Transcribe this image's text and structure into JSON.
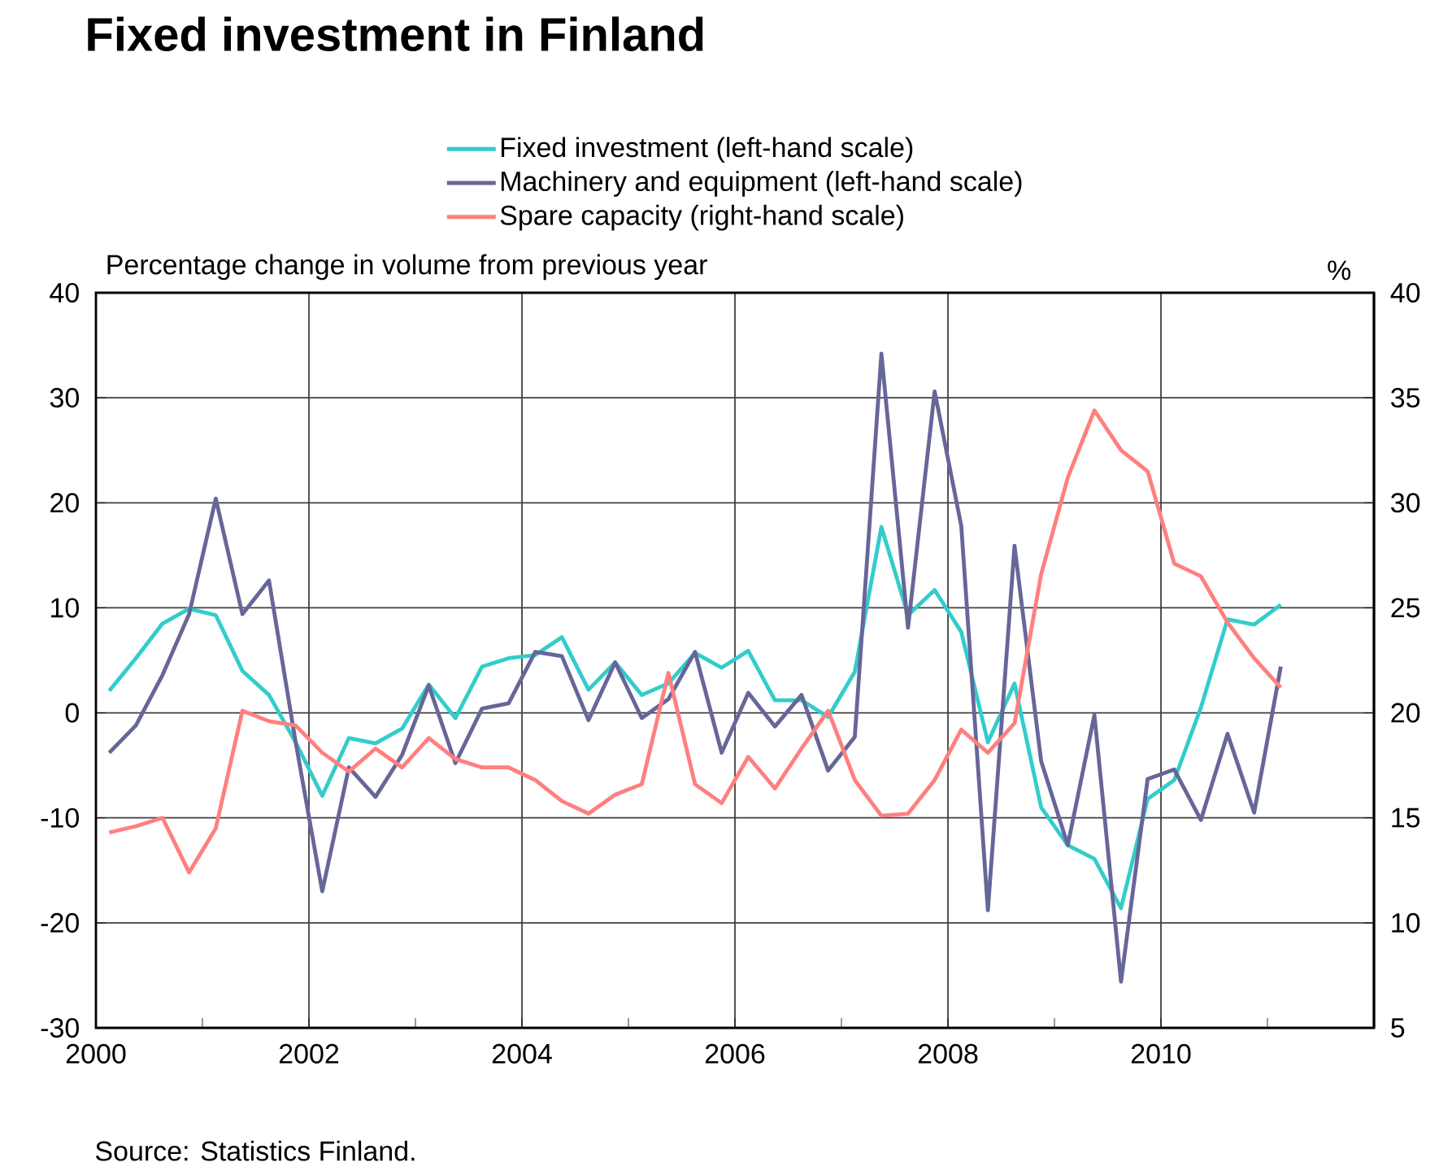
{
  "chart_data": {
    "type": "line",
    "title": "Fixed investment in Finland",
    "ylabel": "Percentage change in volume from previous year",
    "y2label": "%",
    "annotations": [
      "Source: Statistics Finland."
    ],
    "x": [
      2000.125,
      2000.375,
      2000.625,
      2000.875,
      2001.125,
      2001.375,
      2001.625,
      2001.875,
      2002.125,
      2002.375,
      2002.625,
      2002.875,
      2003.125,
      2003.375,
      2003.625,
      2003.875,
      2004.125,
      2004.375,
      2004.625,
      2004.875,
      2005.125,
      2005.375,
      2005.625,
      2005.875,
      2006.125,
      2006.375,
      2006.625,
      2006.875,
      2007.125,
      2007.375,
      2007.625,
      2007.875,
      2008.125,
      2008.375,
      2008.625,
      2008.875,
      2009.125,
      2009.375,
      2009.625,
      2009.875,
      2010.125,
      2010.375,
      2010.625,
      2010.875,
      2011.125
    ],
    "series": [
      {
        "name": "Fixed investment (left-hand scale)",
        "color": "#33cccc",
        "values": [
          2.1,
          5.2,
          8.5,
          9.9,
          9.3,
          4.0,
          1.7,
          -2.8,
          -7.9,
          -2.4,
          -2.9,
          -1.5,
          2.7,
          -0.5,
          4.4,
          5.2,
          5.5,
          7.2,
          2.2,
          4.8,
          1.7,
          2.8,
          5.7,
          4.3,
          5.9,
          1.2,
          1.2,
          -0.4,
          3.9,
          17.7,
          9.3,
          11.7,
          7.7,
          -2.8,
          2.8,
          -9.0,
          -12.6,
          -13.9,
          -18.6,
          -8.2,
          -6.4,
          0.5,
          8.9,
          8.4,
          10.3
        ]
      },
      {
        "name": "Machinery and equipment (left-hand scale)",
        "color": "#666699",
        "values": [
          -3.8,
          -1.2,
          3.6,
          9.4,
          20.4,
          9.4,
          12.6,
          -2.8,
          -17.0,
          -5.2,
          -8.0,
          -4.0,
          2.6,
          -4.8,
          0.4,
          0.9,
          5.8,
          5.4,
          -0.7,
          4.8,
          -0.5,
          1.3,
          5.8,
          -3.8,
          1.9,
          -1.3,
          1.7,
          -5.5,
          -2.3,
          34.2,
          8.1,
          30.6,
          17.8,
          -18.8,
          15.9,
          -4.6,
          -12.6,
          -0.2,
          -25.6,
          -6.3,
          -5.4,
          -10.2,
          -2.0,
          -9.5,
          4.4
        ]
      },
      {
        "name": "Spare capacity (right-hand scale)",
        "color": "#ff7f7f",
        "axis": "y2",
        "values": [
          14.3,
          14.6,
          15.0,
          12.4,
          14.5,
          20.1,
          19.6,
          19.4,
          18.1,
          17.2,
          18.3,
          17.4,
          18.8,
          17.8,
          17.4,
          17.4,
          16.8,
          15.8,
          15.2,
          16.1,
          16.6,
          21.9,
          16.6,
          15.7,
          17.9,
          16.4,
          18.3,
          20.1,
          16.8,
          15.1,
          15.2,
          16.8,
          19.2,
          18.1,
          19.5,
          26.6,
          31.2,
          34.4,
          32.5,
          31.5,
          27.1,
          26.5,
          24.3,
          22.6,
          21.2
        ]
      }
    ],
    "xlim": [
      2000,
      2012
    ],
    "xticks": [
      2000,
      {
        "value": 2001,
        "label": null
      },
      2002,
      {
        "value": 2003,
        "label": null
      },
      2004,
      {
        "value": 2005,
        "label": null
      },
      2006,
      {
        "value": 2007,
        "label": null
      },
      2008,
      {
        "value": 2009,
        "label": null
      },
      2010,
      {
        "value": 2011,
        "label": null
      }
    ],
    "ylim": [
      -30,
      40
    ],
    "yticks": [
      -30,
      -20,
      -10,
      0,
      10,
      20,
      30,
      40
    ],
    "y2lim": [
      5,
      40
    ],
    "y2ticks": [
      5,
      10,
      15,
      20,
      25,
      30,
      35,
      40
    ],
    "grid": true,
    "legend": "top",
    "marker": "none",
    "line_style": "solid"
  }
}
